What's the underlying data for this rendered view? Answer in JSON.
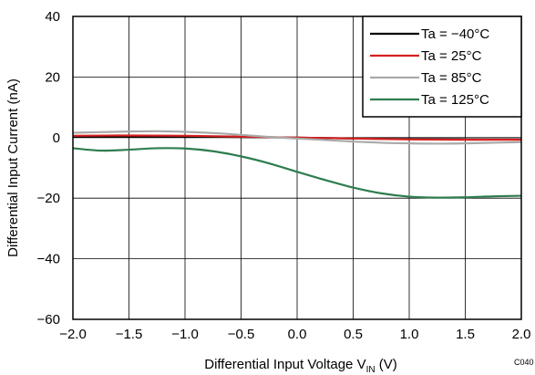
{
  "chart_data": {
    "type": "line",
    "xlabel": "Differential  Input Voltage V",
    "xlabel_sub": "IN",
    "xlabel_unit": " (V)",
    "ylabel": "Differential Input Current (nA)",
    "xlim": [
      -2.0,
      2.0
    ],
    "ylim": [
      -60,
      40
    ],
    "x_ticks": [
      -2.0,
      -1.5,
      -1.0,
      -0.5,
      0.0,
      0.5,
      1.0,
      1.5,
      2.0
    ],
    "x_tick_labels": [
      "−2.0",
      "−1.5",
      "−1.0",
      "−0.5",
      "0.0",
      "0.5",
      "1.0",
      "1.5",
      "2.0"
    ],
    "y_ticks": [
      -60,
      -40,
      -20,
      0,
      20,
      40
    ],
    "y_tick_labels": [
      "−60",
      "−40",
      "−20",
      "0",
      "20",
      "40"
    ],
    "grid": true,
    "legend_position": "top-right",
    "code": "C040",
    "series": [
      {
        "name": "Ta = −40°C",
        "color": "#000000",
        "x": [
          -2.0,
          -1.5,
          -1.0,
          -0.5,
          0.0,
          0.5,
          1.0,
          1.5,
          2.0
        ],
        "y": [
          0.3,
          0.4,
          0.4,
          0.2,
          0.0,
          -0.3,
          -0.5,
          -0.6,
          -0.6
        ]
      },
      {
        "name": "Ta = 25°C",
        "color": "#d62020",
        "x": [
          -2.0,
          -1.5,
          -1.0,
          -0.5,
          0.0,
          0.5,
          1.0,
          1.5,
          2.0
        ],
        "y": [
          0.6,
          0.7,
          0.6,
          0.3,
          0.0,
          -0.3,
          -0.6,
          -0.7,
          -0.7
        ]
      },
      {
        "name": "Ta = 85°C",
        "color": "#a9a9a9",
        "x": [
          -2.0,
          -1.75,
          -1.5,
          -1.25,
          -1.0,
          -0.75,
          -0.5,
          -0.25,
          0.0,
          0.25,
          0.5,
          0.75,
          1.0,
          1.25,
          1.5,
          1.75,
          2.0
        ],
        "y": [
          1.6,
          1.8,
          2.0,
          2.1,
          1.9,
          1.5,
          0.9,
          0.2,
          -0.3,
          -0.8,
          -1.3,
          -1.7,
          -1.9,
          -2.0,
          -1.9,
          -1.7,
          -1.5
        ]
      },
      {
        "name": "Ta = 125°C",
        "color": "#2e7d4f",
        "x": [
          -2.0,
          -1.75,
          -1.5,
          -1.25,
          -1.0,
          -0.75,
          -0.5,
          -0.25,
          0.0,
          0.25,
          0.5,
          0.75,
          1.0,
          1.25,
          1.5,
          1.75,
          2.0
        ],
        "y": [
          -3.5,
          -4.3,
          -4.0,
          -3.5,
          -3.6,
          -4.5,
          -6.2,
          -8.5,
          -11.3,
          -14.0,
          -16.5,
          -18.4,
          -19.5,
          -19.8,
          -19.7,
          -19.4,
          -19.2
        ]
      }
    ]
  }
}
